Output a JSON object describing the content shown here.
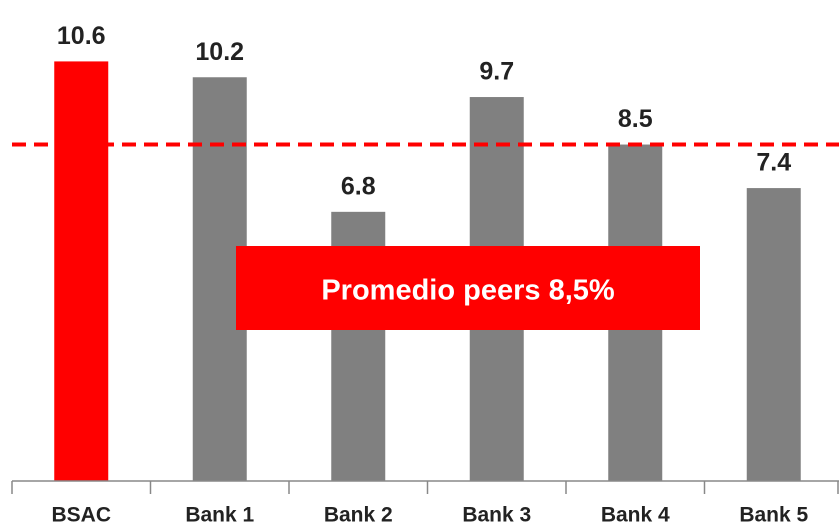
{
  "chart_data": {
    "type": "bar",
    "categories": [
      "BSAC",
      "Bank 1",
      "Bank 2",
      "Bank 3",
      "Bank 4",
      "Bank 5"
    ],
    "values": [
      10.6,
      10.2,
      6.8,
      9.7,
      8.5,
      7.4
    ],
    "colors": [
      "#ff0000",
      "#808080",
      "#808080",
      "#808080",
      "#808080",
      "#808080"
    ],
    "ylim": [
      0,
      12
    ],
    "reference_line": 8.5,
    "reference_color": "#ff0000",
    "annotation": "Promedio peers 8,5%",
    "annotation_color": "#ff0000"
  }
}
